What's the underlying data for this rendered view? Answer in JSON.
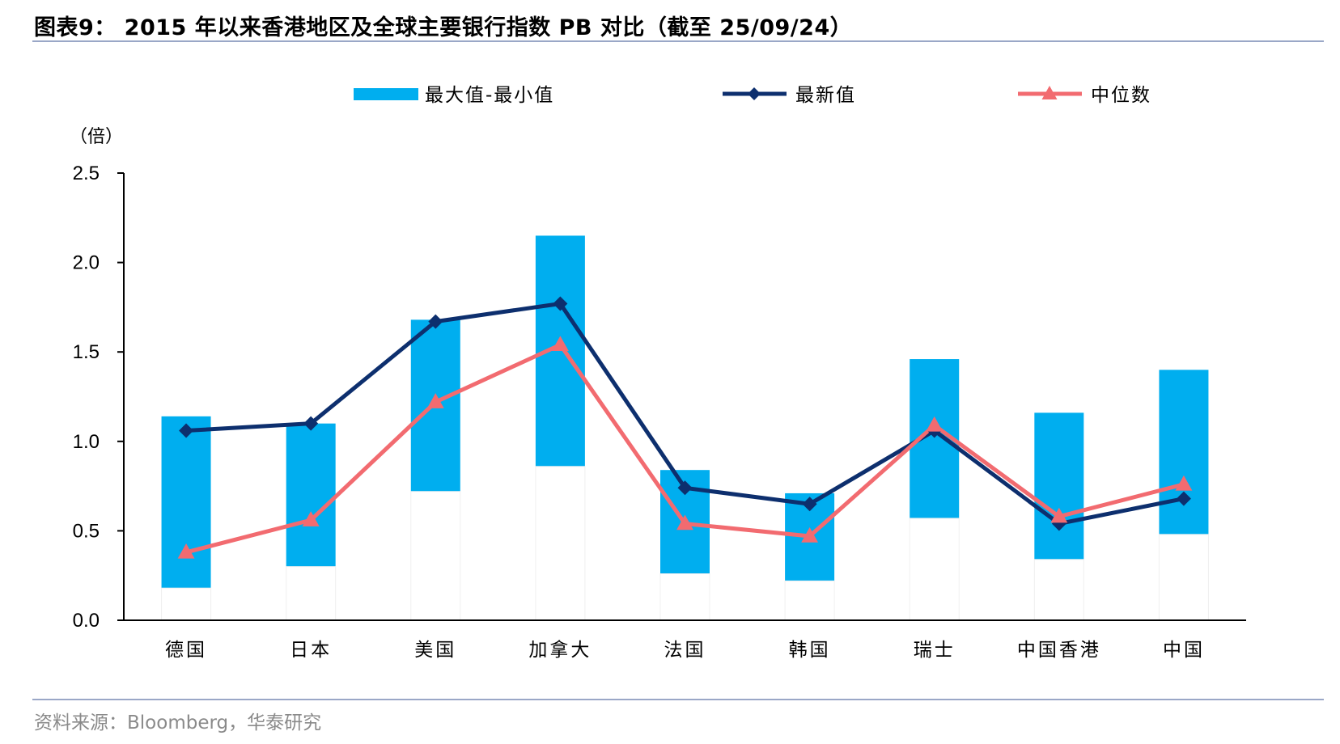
{
  "title": "图表9： 2015 年以来香港地区及全球主要银行指数 PB 对比（截至 25/09/24）",
  "source": "资料来源：Bloomberg，华泰研究",
  "colors": {
    "range_bar": "#00AEEF",
    "latest_line": "#0D2F6E",
    "median_line": "#F26B70",
    "axis": "#000000",
    "rule": "#9AA7C7"
  },
  "chart_data": {
    "type": "bar",
    "unit_label": "（倍）",
    "categories": [
      "德国",
      "日本",
      "美国",
      "加拿大",
      "法国",
      "韩国",
      "瑞士",
      "中国香港",
      "中国"
    ],
    "ylim": [
      0,
      2.5
    ],
    "yticks": [
      "0.0",
      "0.5",
      "1.0",
      "1.5",
      "2.0",
      "2.5"
    ],
    "grid": false,
    "legend_position": "top",
    "series": [
      {
        "name": "最大值-最小值",
        "kind": "floating-bar",
        "min": [
          0.18,
          0.3,
          0.72,
          0.86,
          0.26,
          0.22,
          0.57,
          0.34,
          0.48
        ],
        "max": [
          1.14,
          1.1,
          1.68,
          2.15,
          0.84,
          0.71,
          1.46,
          1.16,
          1.4
        ]
      },
      {
        "name": "最新值",
        "kind": "line-diamond",
        "values": [
          1.06,
          1.1,
          1.67,
          1.77,
          0.74,
          0.65,
          1.06,
          0.54,
          0.68
        ]
      },
      {
        "name": "中位数",
        "kind": "line-triangle",
        "values": [
          0.38,
          0.56,
          1.22,
          1.54,
          0.54,
          0.47,
          1.09,
          0.58,
          0.76
        ]
      }
    ]
  }
}
